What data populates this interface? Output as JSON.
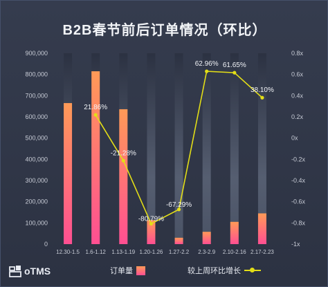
{
  "chart_data": {
    "type": "bar",
    "title": "B2B春节前后订单情况（环比）",
    "categories": [
      "12.30-1.5",
      "1.6-1.12",
      "1.13-1.19",
      "1.20-1.26",
      "1.27-2.2",
      "2.3-2.9",
      "2.10-2.16",
      "2.17-2.23"
    ],
    "series": [
      {
        "name": "订单量",
        "type": "bar",
        "axis": "left",
        "values": [
          665000,
          815000,
          636000,
          113000,
          30000,
          58000,
          105000,
          145000
        ]
      },
      {
        "name": "较上周环比增长",
        "type": "line",
        "axis": "right",
        "values": [
          null,
          0.2186,
          -0.2128,
          -0.8079,
          -0.6729,
          0.6296,
          0.6165,
          0.381
        ],
        "data_labels": [
          "",
          "21.86%",
          "-21.28%",
          "-80.79%",
          "-67.29%",
          "62.96%",
          "61.65%",
          "38.10%"
        ]
      }
    ],
    "ylim": [
      0,
      900000
    ],
    "y2lim": [
      -1,
      0.8
    ],
    "yticks": [
      "0",
      "100,000",
      "200,000",
      "300,000",
      "400,000",
      "500,000",
      "600,000",
      "700,000",
      "800,000",
      "900,000"
    ],
    "y2ticks": [
      "-1x",
      "-0.8x",
      "-0.6x",
      "-0.4x",
      "-0.2x",
      "0x",
      "0.2x",
      "0.4x",
      "0.6x",
      "0.8x"
    ],
    "grid": false,
    "legend_position": "bottom"
  },
  "branding": {
    "label": "oTMS",
    "icon": "logistics-logo-icon"
  },
  "colors": {
    "background": "#2f3647",
    "bar_top": "#ff9a57",
    "bar_bottom": "#ff4f92",
    "line": "#e3de17",
    "text": "#e9ecf2",
    "axis_text": "#c8ccd6"
  }
}
